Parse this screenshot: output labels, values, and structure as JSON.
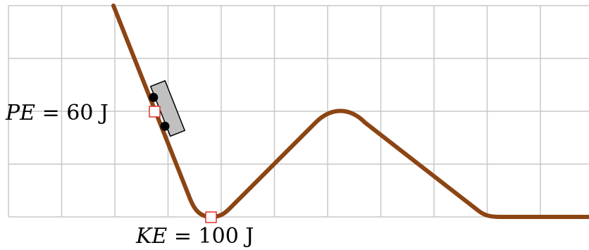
{
  "labels": {
    "pe": {
      "symbol": "PE",
      "rest": " = 60 J"
    },
    "ke": {
      "symbol": "KE",
      "rest": " = 100 J"
    }
  },
  "colors": {
    "track": "#8b4513",
    "grid": "#c8c8c8",
    "car_body": "#c0c0c0",
    "wheels": "#000000",
    "marker_stroke": "#e03030"
  }
}
